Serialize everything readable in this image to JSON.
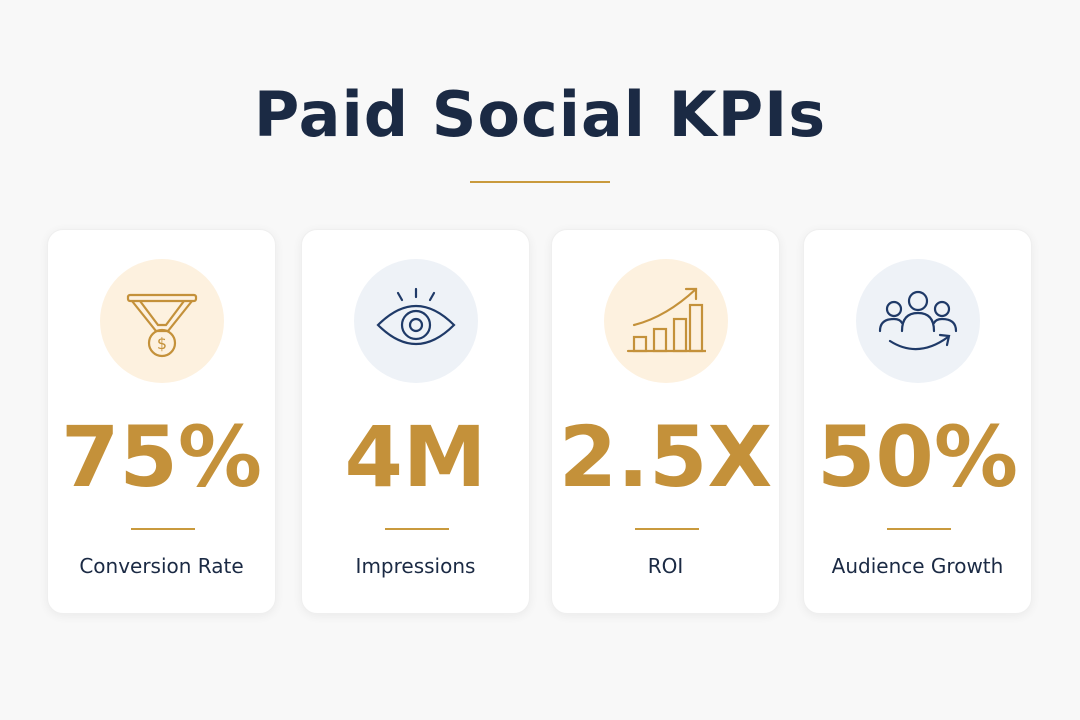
{
  "header": {
    "title": "Paid Social KPIs"
  },
  "cards": [
    {
      "value": "75%",
      "label": "Conversion Rate"
    },
    {
      "value": "4M",
      "label": "Impressions"
    },
    {
      "value": "2.5X",
      "label": "ROI"
    },
    {
      "value": "50%",
      "label": "Audience Growth"
    }
  ]
}
